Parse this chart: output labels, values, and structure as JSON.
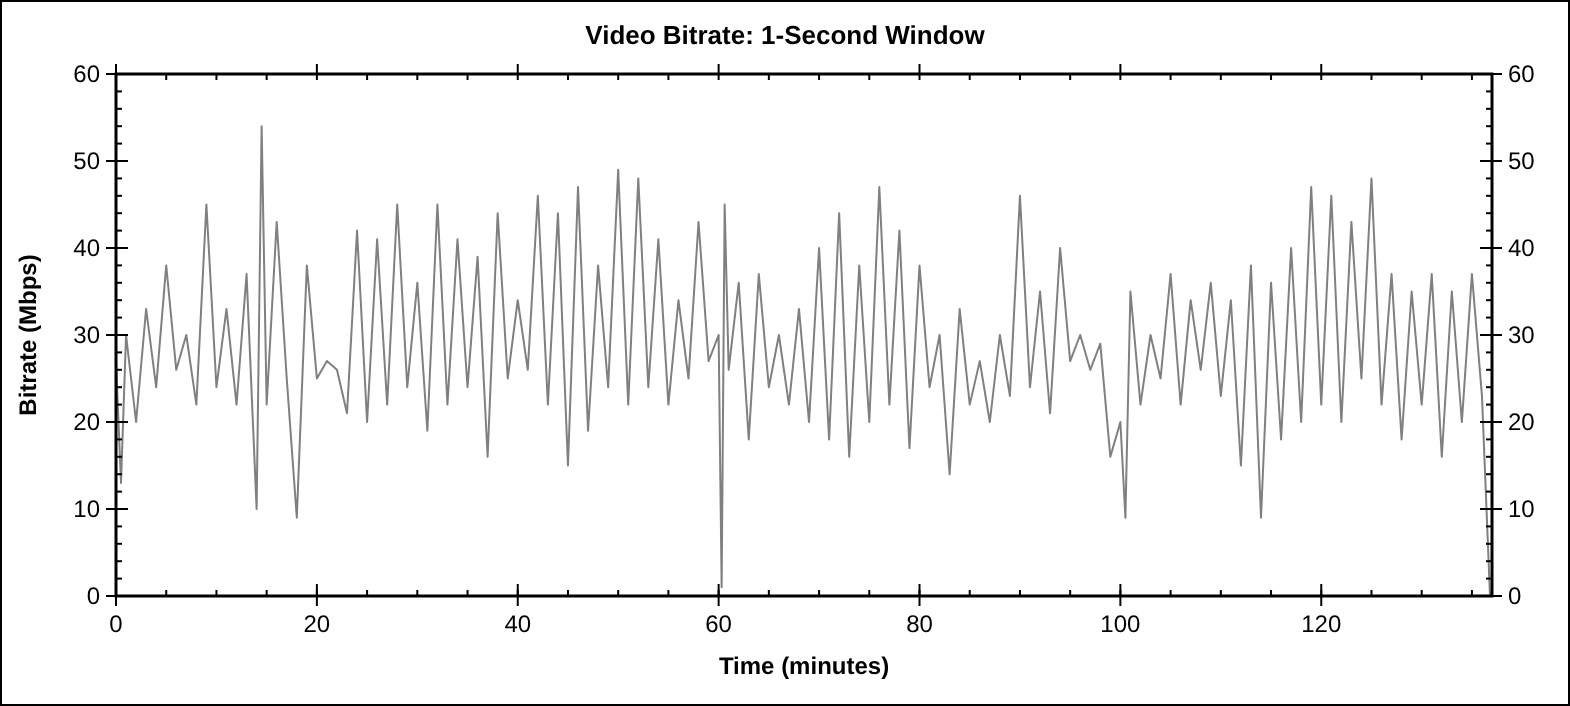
{
  "chart_data": {
    "type": "line",
    "title": "Video Bitrate: 1-Second Window",
    "xlabel": "Time (minutes)",
    "ylabel": "Bitrate (Mbps)",
    "xlim": [
      0,
      137
    ],
    "xticks": [
      0,
      20,
      40,
      60,
      80,
      100,
      120
    ],
    "ylim": [
      0,
      60
    ],
    "yticks": [
      0,
      10,
      20,
      30,
      40,
      50,
      60
    ],
    "y2lim": [
      0,
      60
    ],
    "y2ticks": [
      0,
      10,
      20,
      30,
      40,
      50,
      60
    ],
    "grid": false,
    "marker": "none",
    "line_style": "solid",
    "x": [
      0,
      0.5,
      1,
      2,
      3,
      4,
      5,
      6,
      7,
      8,
      9,
      10,
      11,
      12,
      13,
      14,
      14.5,
      15,
      16,
      17,
      18,
      19,
      20,
      21,
      22,
      23,
      24,
      25,
      26,
      27,
      28,
      29,
      30,
      31,
      32,
      33,
      34,
      35,
      36,
      37,
      38,
      39,
      40,
      41,
      42,
      43,
      44,
      45,
      46,
      47,
      48,
      49,
      50,
      51,
      52,
      53,
      54,
      55,
      56,
      57,
      58,
      59,
      60,
      60.3,
      60.6,
      61,
      62,
      63,
      64,
      65,
      66,
      67,
      68,
      69,
      70,
      71,
      72,
      73,
      74,
      75,
      76,
      77,
      78,
      79,
      80,
      81,
      82,
      83,
      84,
      85,
      86,
      87,
      88,
      89,
      90,
      91,
      92,
      93,
      94,
      95,
      96,
      97,
      98,
      99,
      100,
      100.5,
      101,
      102,
      103,
      104,
      105,
      106,
      107,
      108,
      109,
      110,
      111,
      112,
      113,
      114,
      115,
      116,
      117,
      118,
      119,
      120,
      121,
      122,
      123,
      124,
      125,
      126,
      127,
      128,
      129,
      130,
      131,
      132,
      133,
      134,
      135,
      136,
      136.8
    ],
    "series": [
      {
        "color": "#808080",
        "values": [
          27,
          13,
          30,
          20,
          33,
          24,
          38,
          26,
          30,
          22,
          45,
          24,
          33,
          22,
          37,
          10,
          54,
          22,
          43,
          25,
          9,
          38,
          25,
          27,
          26,
          21,
          42,
          20,
          41,
          22,
          45,
          24,
          36,
          19,
          45,
          22,
          41,
          24,
          39,
          16,
          44,
          25,
          34,
          26,
          46,
          22,
          44,
          15,
          47,
          19,
          38,
          24,
          49,
          22,
          48,
          24,
          41,
          22,
          34,
          25,
          43,
          27,
          30,
          1,
          45,
          26,
          36,
          18,
          37,
          24,
          30,
          22,
          33,
          20,
          40,
          18,
          44,
          16,
          38,
          20,
          47,
          22,
          42,
          17,
          38,
          24,
          30,
          14,
          33,
          22,
          27,
          20,
          30,
          23,
          46,
          24,
          35,
          21,
          40,
          27,
          30,
          26,
          29,
          16,
          20,
          9,
          35,
          22,
          30,
          25,
          37,
          22,
          34,
          26,
          36,
          23,
          34,
          15,
          38,
          9,
          36,
          18,
          40,
          20,
          47,
          22,
          46,
          20,
          43,
          25,
          48,
          22,
          37,
          18,
          35,
          22,
          37,
          16,
          35,
          20,
          37,
          23,
          0
        ]
      }
    ]
  }
}
